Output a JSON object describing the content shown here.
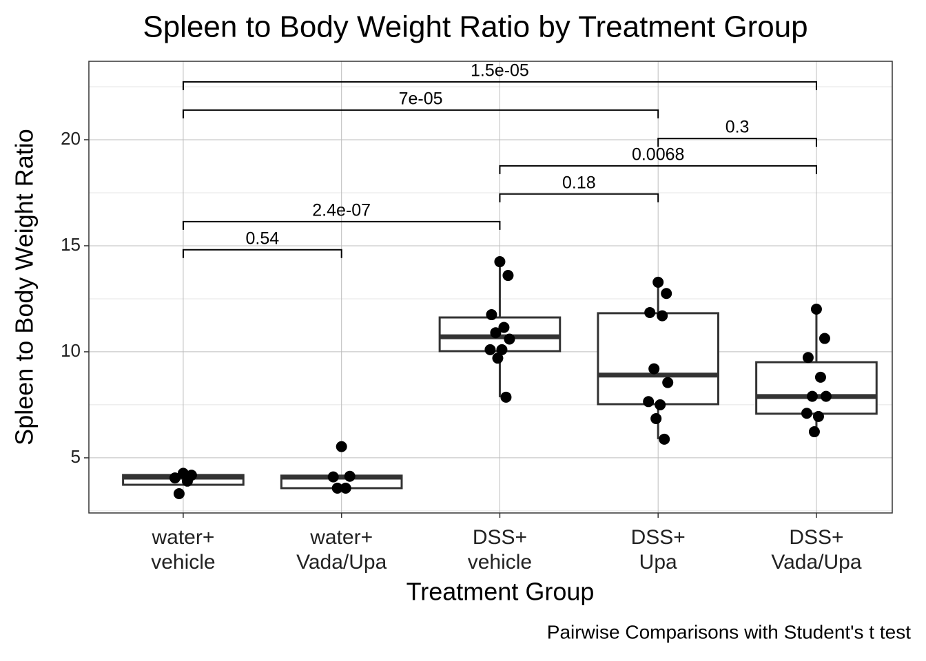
{
  "chart_data": {
    "type": "box",
    "title": "Spleen to Body Weight Ratio by Treatment Group",
    "x_label": "Treatment Group",
    "y_label": "Spleen to Body Weight Ratio",
    "caption": "Pairwise Comparisons with Student's t test",
    "categories": [
      "water+\nvehicle",
      "water+\nVada/Upa",
      "DSS+\nvehicle",
      "DSS+\nUpa",
      "DSS+\nVada/Upa"
    ],
    "boxes": [
      {
        "q1": 3.73,
        "median": 4.09,
        "q3": 4.19,
        "whisker_low": 3.73,
        "whisker_high": 4.25
      },
      {
        "q1": 3.57,
        "median": 4.09,
        "q3": 4.16,
        "whisker_low": 3.57,
        "whisker_high": 4.16
      },
      {
        "q1": 10.03,
        "median": 10.71,
        "q3": 11.62,
        "whisker_low": 7.86,
        "whisker_high": 14.25
      },
      {
        "q1": 7.53,
        "median": 8.9,
        "q3": 11.82,
        "whisker_low": 5.88,
        "whisker_high": 13.28
      },
      {
        "q1": 7.08,
        "median": 7.89,
        "q3": 9.51,
        "whisker_low": 6.23,
        "whisker_high": 12.01
      }
    ],
    "points": [
      [
        4.27,
        4.18,
        4.05,
        3.9,
        3.31
      ],
      [
        5.53,
        4.13,
        4.1,
        3.57,
        3.57
      ],
      [
        14.25,
        13.6,
        11.75,
        11.15,
        10.9,
        10.6,
        10.1,
        10.1,
        9.7,
        7.86
      ],
      [
        13.28,
        12.75,
        11.85,
        11.7,
        9.2,
        8.55,
        7.65,
        7.5,
        6.85,
        5.88
      ],
      [
        12.01,
        10.63,
        9.73,
        8.8,
        7.9,
        7.9,
        7.1,
        6.95,
        6.23
      ]
    ],
    "comparisons": [
      {
        "label": "1.5e-05",
        "from": 0,
        "to": 4,
        "y": 22.73
      },
      {
        "label": "7e-05",
        "from": 0,
        "to": 3,
        "y": 21.4
      },
      {
        "label": "0.3",
        "from": 3,
        "to": 4,
        "y": 20.06
      },
      {
        "label": "0.0068",
        "from": 2,
        "to": 4,
        "y": 18.77
      },
      {
        "label": "0.18",
        "from": 2,
        "to": 3,
        "y": 17.44
      },
      {
        "label": "2.4e-07",
        "from": 0,
        "to": 2,
        "y": 16.14
      },
      {
        "label": "0.54",
        "from": 0,
        "to": 1,
        "y": 14.81
      }
    ],
    "ylim": [
      2.4,
      23.7
    ],
    "yticks": [
      5,
      10,
      15,
      20
    ],
    "yminor_ticks": [
      2.5,
      7.5,
      12.5,
      17.5,
      22.5
    ],
    "grid": true,
    "box_color": "#333333",
    "point_color": "#000000"
  }
}
